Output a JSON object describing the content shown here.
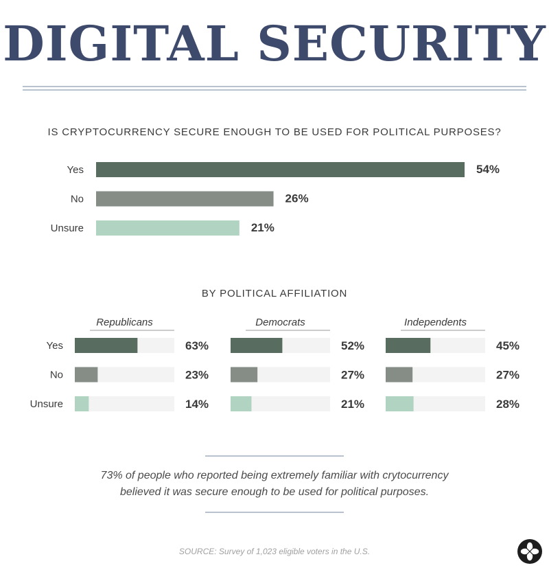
{
  "title": "DIGITAL SECURITY",
  "question": "IS CRYPTOCURRENCY SECURE ENOUGH TO BE USED FOR POLITICAL PURPOSES?",
  "subheading": "BY POLITICAL AFFILIATION",
  "note_line1": "73% of people who reported being extremely familiar with crytocurrency",
  "note_line2": "believed it was secure enough to be used for political purposes.",
  "source": "SOURCE: Survey of 1,023 eligible voters in the U.S.",
  "logo_icon": "clover-icon",
  "colors": {
    "title": "#3e4a6b",
    "yes": "#586d60",
    "no": "#858d86",
    "unsure": "#b0d3c2",
    "track": "#f2f3f2",
    "rule": "#b8c2cf"
  },
  "chart_data": [
    {
      "type": "bar",
      "orientation": "horizontal",
      "title": "IS CRYPTOCURRENCY SECURE ENOUGH TO BE USED FOR POLITICAL PURPOSES?",
      "categories": [
        "Yes",
        "No",
        "Unsure"
      ],
      "values": [
        54,
        26,
        21
      ],
      "value_labels": [
        "54%",
        "26%",
        "21%"
      ],
      "unit": "%"
    },
    {
      "type": "bar",
      "orientation": "horizontal",
      "title": "BY POLITICAL AFFILIATION",
      "categories": [
        "Yes",
        "No",
        "Unsure"
      ],
      "series": [
        {
          "name": "Republicans",
          "values": [
            63,
            23,
            14
          ],
          "value_labels": [
            "63%",
            "23%",
            "14%"
          ]
        },
        {
          "name": "Democrats",
          "values": [
            52,
            27,
            21
          ],
          "value_labels": [
            "52%",
            "27%",
            "21%"
          ]
        },
        {
          "name": "Independents",
          "values": [
            45,
            27,
            28
          ],
          "value_labels": [
            "45%",
            "27%",
            "28%"
          ]
        }
      ],
      "xlim": [
        0,
        100
      ],
      "unit": "%"
    }
  ]
}
